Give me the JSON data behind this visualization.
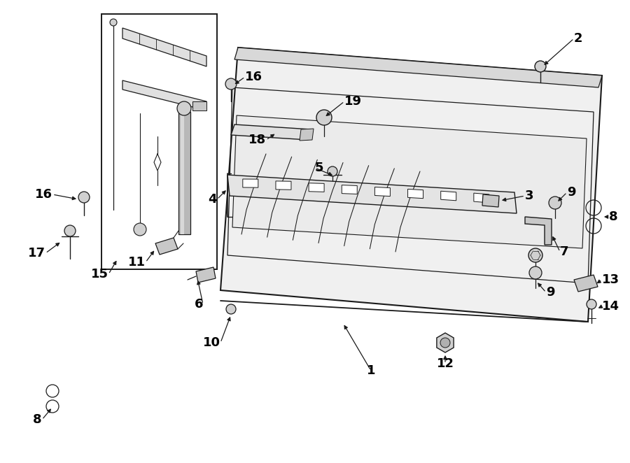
{
  "bg_color": "#ffffff",
  "line_color": "#1a1a1a",
  "text_color": "#000000",
  "fig_width": 9.0,
  "fig_height": 6.62,
  "dpi": 100,
  "lw_main": 1.3,
  "lw_thin": 0.7,
  "label_fontsize": 13
}
